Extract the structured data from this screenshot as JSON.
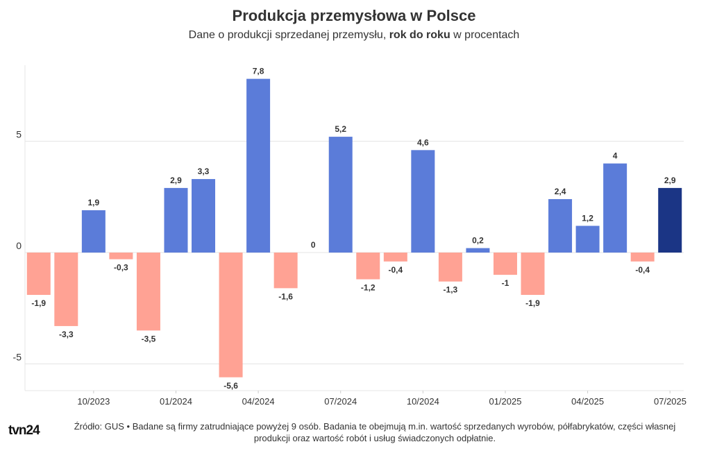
{
  "header": {
    "title": "Produkcja przemysłowa w Polsce",
    "subtitle_prefix": "Dane o produkcji sprzedanej przemysłu, ",
    "subtitle_bold": "rok do roku",
    "subtitle_suffix": " w procentach"
  },
  "chart_data": {
    "type": "bar",
    "title": "Produkcja przemysłowa w Polsce",
    "subtitle": "Dane o produkcji sprzedanej przemysłu, rok do roku w procentach",
    "xlabel": "",
    "ylabel": "",
    "ylim": [
      -6.2,
      8.4
    ],
    "yticks": [
      -5,
      0,
      5
    ],
    "ytick_labels": [
      "-5",
      "0",
      "5"
    ],
    "xtick_labels": [
      "10/2023",
      "01/2024",
      "04/2024",
      "07/2024",
      "10/2024",
      "01/2025",
      "04/2025",
      "07/2025"
    ],
    "xtick_bar_index": [
      2,
      5,
      8,
      11,
      14,
      17,
      20,
      23
    ],
    "grid": true,
    "values": [
      -1.9,
      -3.3,
      1.9,
      -0.3,
      -3.5,
      2.9,
      3.3,
      -5.6,
      7.8,
      -1.6,
      0,
      5.2,
      -1.2,
      -0.4,
      4.6,
      -1.3,
      0.2,
      -1,
      -1.9,
      2.4,
      1.2,
      4,
      -0.4,
      2.9
    ],
    "value_labels": [
      "-1,9",
      "-3,3",
      "1,9",
      "-0,3",
      "-3,5",
      "2,9",
      "3,3",
      "-5,6",
      "7,8",
      "-1,6",
      "0",
      "5,2",
      "-1,2",
      "-0,4",
      "4,6",
      "-1,3",
      "0,2",
      "-1",
      "-1,9",
      "2,4",
      "1,2",
      "4",
      "-0,4",
      "2,9"
    ],
    "colors": {
      "positive": "#5b7cd9",
      "negative": "#ffa294",
      "latest": "#1b3585",
      "grid": "#e4e4e4",
      "tick_text": "#333333"
    }
  },
  "footer": {
    "logo": "tvn24",
    "source_line1": "Źródło: GUS • Badane są firmy zatrudniające powyżej 9 osób. Badania te obejmują m.in. wartość sprzedanych wyrobów, półfabrykatów, części własnej",
    "source_line2": "produkcji oraz wartość robót i usług świadczonych odpłatnie."
  }
}
